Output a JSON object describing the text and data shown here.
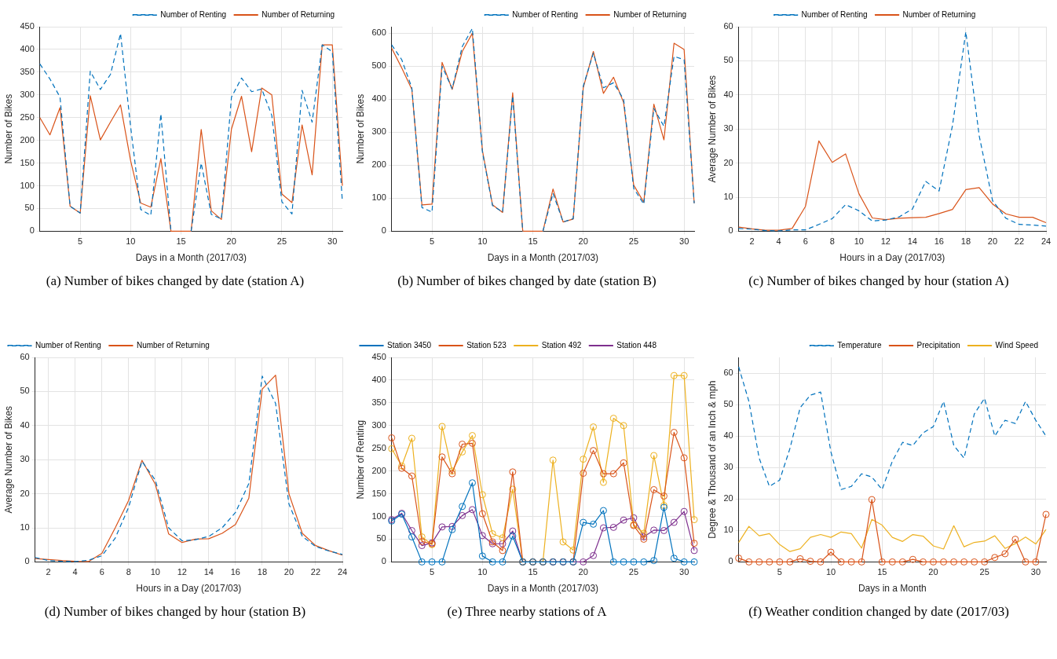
{
  "chart_data": [
    {
      "type": "line",
      "ylabel": "Number of Bikes",
      "xlabel": "Days in a Month (2017/03)",
      "annotations": [
        "(a) Number of bikes changed by date (station A)"
      ],
      "x": [
        1,
        2,
        3,
        4,
        5,
        6,
        7,
        8,
        9,
        10,
        11,
        12,
        13,
        14,
        15,
        16,
        17,
        18,
        19,
        20,
        21,
        22,
        23,
        24,
        25,
        26,
        27,
        28,
        29,
        30,
        31
      ],
      "xlim": [
        1,
        31
      ],
      "xticks": [
        5,
        10,
        15,
        20,
        25,
        30
      ],
      "ylim": [
        0,
        450
      ],
      "yticks": [
        0,
        50,
        100,
        150,
        200,
        250,
        300,
        350,
        400,
        450
      ],
      "grid": true,
      "legend": "top right",
      "series": [
        {
          "name": "Number of Renting",
          "color": "#0072bd",
          "line_style": "dashed",
          "values": [
            368,
            335,
            295,
            55,
            40,
            352,
            312,
            345,
            435,
            230,
            48,
            35,
            258,
            0,
            null,
            0,
            150,
            37,
            27,
            295,
            337,
            307,
            313,
            255,
            65,
            38,
            310,
            240,
            410,
            395,
            65
          ]
        },
        {
          "name": "Number of Returning",
          "color": "#d95319",
          "line_style": "solid",
          "values": [
            250,
            212,
            272,
            55,
            40,
            298,
            201,
            240,
            278,
            155,
            62,
            53,
            160,
            0,
            0,
            0,
            224,
            45,
            26,
            225,
            297,
            175,
            315,
            300,
            82,
            63,
            234,
            124,
            410,
            410,
            100
          ]
        }
      ]
    },
    {
      "type": "line",
      "ylabel": "Number of Bikes",
      "xlabel": "Days in a Month (2017/03)",
      "annotations": [
        "(b) Number of bikes changed by date (station B)"
      ],
      "x": [
        1,
        2,
        3,
        4,
        5,
        6,
        7,
        8,
        9,
        10,
        11,
        12,
        13,
        14,
        15,
        16,
        17,
        18,
        19,
        20,
        21,
        22,
        23,
        24,
        25,
        26,
        27,
        28,
        29,
        30,
        31
      ],
      "xlim": [
        1,
        31
      ],
      "xticks": [
        5,
        10,
        15,
        20,
        25,
        30
      ],
      "ylim": [
        0,
        620
      ],
      "yticks": [
        0,
        100,
        200,
        300,
        400,
        500,
        600
      ],
      "grid": true,
      "legend": "top right",
      "series": [
        {
          "name": "Number of Renting",
          "color": "#0072bd",
          "line_style": "dashed",
          "values": [
            565,
            520,
            435,
            72,
            58,
            500,
            432,
            560,
            615,
            240,
            78,
            58,
            410,
            0,
            null,
            0,
            115,
            28,
            38,
            440,
            540,
            435,
            450,
            400,
            130,
            82,
            372,
            318,
            530,
            520,
            85
          ]
        },
        {
          "name": "Number of Returning",
          "color": "#d95319",
          "line_style": "solid",
          "values": [
            555,
            495,
            430,
            80,
            82,
            512,
            430,
            545,
            600,
            245,
            80,
            57,
            420,
            0,
            0,
            0,
            128,
            28,
            37,
            435,
            545,
            418,
            467,
            390,
            140,
            88,
            385,
            277,
            570,
            551,
            85
          ]
        }
      ]
    },
    {
      "type": "line",
      "ylabel": "Average Number of Bikes",
      "xlabel": "Hours in a Day (2017/03)",
      "annotations": [
        "(c) Number of bikes changed by hour (station A)"
      ],
      "x": [
        1,
        2,
        3,
        4,
        5,
        6,
        7,
        8,
        9,
        10,
        11,
        12,
        13,
        14,
        15,
        16,
        17,
        18,
        19,
        20,
        21,
        22,
        23,
        24
      ],
      "xlim": [
        1,
        24
      ],
      "xticks": [
        2,
        4,
        6,
        8,
        10,
        12,
        14,
        16,
        18,
        20,
        22,
        24
      ],
      "ylim": [
        0,
        60
      ],
      "yticks": [
        0,
        10,
        20,
        30,
        40,
        50,
        60
      ],
      "grid": true,
      "legend": "top",
      "series": [
        {
          "name": "Number of Renting",
          "color": "#0072bd",
          "line_style": "dashed",
          "values": [
            0.8,
            0.6,
            0.2,
            0.1,
            0.4,
            0.4,
            2,
            3.7,
            7.8,
            6,
            3,
            3.3,
            4.2,
            6.5,
            14.6,
            11.8,
            31,
            58.5,
            28,
            9,
            3.8,
            2,
            1.8,
            1.5
          ]
        },
        {
          "name": "Number of Returning",
          "color": "#d95319",
          "line_style": "solid",
          "values": [
            1.2,
            0.7,
            0.3,
            0.3,
            0.8,
            7.3,
            26.5,
            20.2,
            22.7,
            11,
            3.9,
            3.4,
            3.8,
            4,
            4.1,
            5.2,
            6.4,
            12.2,
            12.8,
            8,
            5.1,
            4.1,
            4.1,
            2.5
          ]
        }
      ]
    },
    {
      "type": "line",
      "ylabel": "Average Number of Bikes",
      "xlabel": "Hours in a Day (2017/03)",
      "annotations": [
        "(d) Number of bikes changed by hour (station B)"
      ],
      "x": [
        1,
        2,
        3,
        4,
        5,
        6,
        7,
        8,
        9,
        10,
        11,
        12,
        13,
        14,
        15,
        16,
        17,
        18,
        19,
        20,
        21,
        22,
        23,
        24
      ],
      "xlim": [
        1,
        24
      ],
      "xticks": [
        2,
        4,
        6,
        8,
        10,
        12,
        14,
        16,
        18,
        20,
        22,
        24
      ],
      "ylim": [
        0,
        60
      ],
      "yticks": [
        0,
        10,
        20,
        30,
        40,
        50,
        60
      ],
      "grid": true,
      "legend": "top left",
      "series": [
        {
          "name": "Number of Renting",
          "color": "#0072bd",
          "line_style": "dashed",
          "values": [
            1.3,
            0.4,
            0.2,
            0.1,
            0.5,
            1.8,
            7,
            16,
            29.5,
            24,
            10,
            6.2,
            6.5,
            7.5,
            10,
            14.5,
            23,
            54.5,
            46.5,
            17,
            7.5,
            4.5,
            3.2,
            2.2
          ]
        },
        {
          "name": "Number of Returning",
          "color": "#d95319",
          "line_style": "solid",
          "values": [
            1,
            0.7,
            0.4,
            0.2,
            0.1,
            2.5,
            10,
            18,
            29.8,
            22.8,
            8.2,
            5.7,
            6.7,
            6.8,
            8.4,
            11,
            18.7,
            50.7,
            54.8,
            20,
            8.4,
            4.8,
            3.3,
            2
          ]
        }
      ]
    },
    {
      "type": "line",
      "ylabel": "Number of Renting",
      "xlabel": "Days in a Month (2017/03)",
      "annotations": [
        "(e) Three nearby stations of A"
      ],
      "x": [
        1,
        2,
        3,
        4,
        5,
        6,
        7,
        8,
        9,
        10,
        11,
        12,
        13,
        14,
        15,
        16,
        17,
        18,
        19,
        20,
        21,
        22,
        23,
        24,
        25,
        26,
        27,
        28,
        29,
        30,
        31
      ],
      "xlim": [
        1,
        31
      ],
      "xticks": [
        5,
        10,
        15,
        20,
        25,
        30
      ],
      "ylim": [
        0,
        450
      ],
      "yticks": [
        0,
        50,
        100,
        150,
        200,
        250,
        300,
        350,
        400,
        450
      ],
      "grid": true,
      "legend": "top left",
      "marker": "circle",
      "line_style": "solid",
      "series": [
        {
          "name": "Station 3450",
          "color": "#0072bd",
          "values": [
            90,
            105,
            55,
            0,
            0,
            0,
            71,
            122,
            174,
            13,
            0,
            0,
            57,
            0,
            0,
            0,
            0,
            0,
            0,
            87,
            83,
            113,
            0,
            0,
            0,
            0,
            3,
            120,
            8,
            0,
            0
          ]
        },
        {
          "name": "Station 523",
          "color": "#d95319",
          "values": [
            273,
            206,
            189,
            45,
            40,
            231,
            194,
            259,
            261,
            106,
            44,
            25,
            198,
            0,
            0,
            0,
            0,
            0,
            0,
            195,
            245,
            194,
            194,
            218,
            80,
            50,
            159,
            145,
            285,
            229,
            41
          ]
        },
        {
          "name": "Station 492",
          "color": "#edb120",
          "values": [
            249,
            211,
            272,
            55,
            38,
            298,
            200,
            242,
            278,
            148,
            62,
            53,
            160,
            0,
            0,
            0,
            224,
            44,
            26,
            226,
            297,
            175,
            316,
            300,
            82,
            63,
            234,
            124,
            410,
            410,
            93
          ]
        },
        {
          "name": "Station 448",
          "color": "#7e2f8e",
          "values": [
            93,
            107,
            69,
            36,
            42,
            77,
            78,
            102,
            115,
            58,
            40,
            40,
            68,
            0,
            0,
            0,
            0,
            0,
            0,
            0,
            14,
            75,
            76,
            92,
            97,
            55,
            70,
            69,
            87,
            111,
            25
          ]
        }
      ]
    },
    {
      "type": "line",
      "ylabel": "Degree & Thousand of an Inch & mph",
      "xlabel": "Days in a Month",
      "annotations": [
        "(f) Weather condition changed by date (2017/03)"
      ],
      "x": [
        1,
        2,
        3,
        4,
        5,
        6,
        7,
        8,
        9,
        10,
        11,
        12,
        13,
        14,
        15,
        16,
        17,
        18,
        19,
        20,
        21,
        22,
        23,
        24,
        25,
        26,
        27,
        28,
        29,
        30,
        31
      ],
      "xlim": [
        1,
        31
      ],
      "xticks": [
        5,
        10,
        15,
        20,
        25,
        30
      ],
      "ylim": [
        0,
        65
      ],
      "yticks": [
        0,
        10,
        20,
        30,
        40,
        50,
        60
      ],
      "grid": true,
      "legend": "top right",
      "series": [
        {
          "name": "Temperature",
          "color": "#0072bd",
          "line_style": "dashed",
          "marker": "none",
          "values": [
            62,
            51,
            33,
            24,
            26,
            36,
            49,
            53,
            54,
            35,
            23,
            24,
            28,
            27,
            23,
            32,
            38,
            37,
            41,
            43,
            51,
            37,
            33,
            47,
            52,
            40,
            45,
            44,
            51,
            45,
            40
          ]
        },
        {
          "name": "Precipitation",
          "color": "#d95319",
          "line_style": "solid",
          "marker": "circle",
          "values": [
            1.2,
            0,
            0,
            0,
            0,
            0,
            1,
            0.2,
            0,
            3.1,
            0,
            0,
            0,
            19.8,
            0,
            0,
            0,
            0.8,
            0,
            0,
            0,
            0,
            0,
            0,
            0,
            1.4,
            2.6,
            7.2,
            0,
            0,
            15.1
          ]
        },
        {
          "name": "Wind Speed",
          "color": "#edb120",
          "line_style": "solid",
          "marker": "none",
          "values": [
            6.2,
            11.3,
            8.3,
            9,
            5.5,
            3.3,
            4.2,
            7.8,
            8.7,
            7.8,
            9.5,
            9,
            4.4,
            13.5,
            11.7,
            7.8,
            6.5,
            8.7,
            8.2,
            5.1,
            4.1,
            11.5,
            4.8,
            6.2,
            6.6,
            8.3,
            4.3,
            5.8,
            7.9,
            5.7,
            10.3
          ]
        }
      ]
    }
  ]
}
